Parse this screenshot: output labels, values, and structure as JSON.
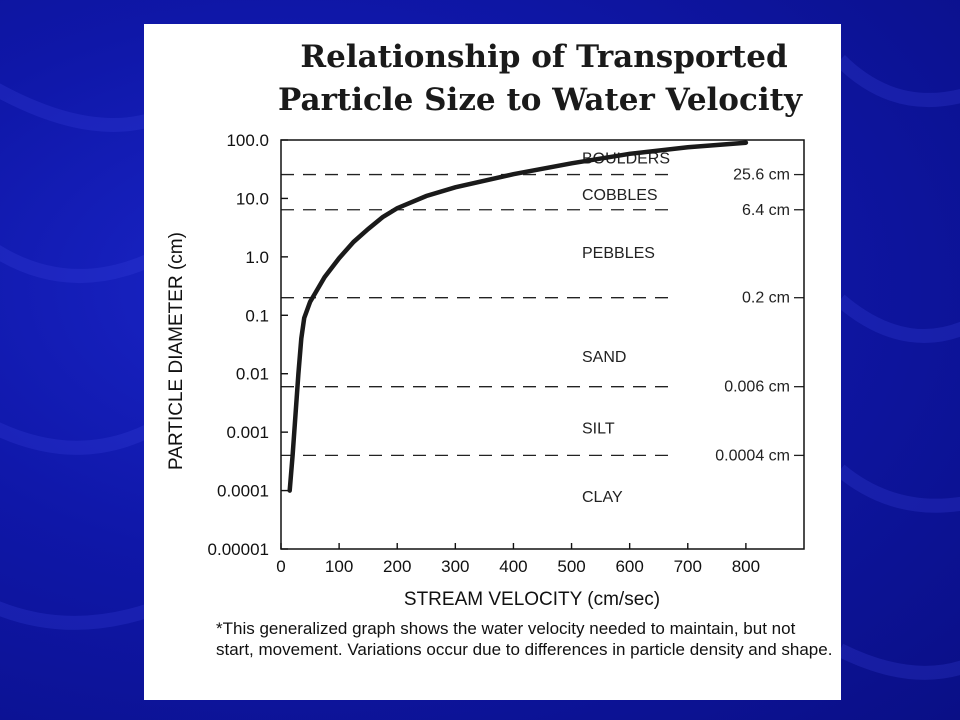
{
  "slide": {
    "background": "#0f17a8",
    "panel_color": "#ffffff"
  },
  "chart_data": {
    "type": "line",
    "title_lines": [
      "Relationship of Transported",
      "Particle Size to Water Velocity"
    ],
    "xlabel": "STREAM VELOCITY (cm/sec)",
    "ylabel": "PARTICLE DIAMETER (cm)",
    "x_ticks": [
      0,
      100,
      200,
      300,
      400,
      500,
      600,
      700,
      800
    ],
    "y_ticks": [
      "100.0",
      "10.0",
      "1.0",
      "0.1",
      "0.01",
      "0.001",
      "0.0001",
      "0.00001"
    ],
    "y_tick_values": [
      100,
      10,
      1,
      0.1,
      0.01,
      0.001,
      0.0001,
      1e-05
    ],
    "xlim": [
      0,
      900
    ],
    "ylim": [
      1e-05,
      100
    ],
    "yscale": "log",
    "grid": false,
    "series": [
      {
        "x": [
          15,
          20,
          25,
          30,
          35,
          40,
          50,
          60,
          75,
          100,
          125,
          150,
          175,
          200,
          250,
          300,
          400,
          500,
          600,
          700,
          800
        ],
        "y": [
          0.0001,
          0.0004,
          0.002,
          0.01,
          0.04,
          0.09,
          0.17,
          0.25,
          0.45,
          0.95,
          1.8,
          3.0,
          4.8,
          6.8,
          11,
          15.5,
          26,
          40,
          58,
          75,
          90
        ]
      }
    ],
    "boundaries": [
      {
        "value": 25.6,
        "label": "25.6 cm"
      },
      {
        "value": 6.4,
        "label": "6.4 cm"
      },
      {
        "value": 0.2,
        "label": "0.2 cm"
      },
      {
        "value": 0.006,
        "label": "0.006 cm"
      },
      {
        "value": 0.0004,
        "label": "0.0004 cm"
      }
    ],
    "zones": [
      {
        "name": "BOULDERS",
        "y": 50
      },
      {
        "name": "COBBLES",
        "y": 12
      },
      {
        "name": "PEBBLES",
        "y": 1.2
      },
      {
        "name": "SAND",
        "y": 0.02
      },
      {
        "name": "SILT",
        "y": 0.0012
      },
      {
        "name": "CLAY",
        "y": 8e-05
      }
    ],
    "line_color": "#1a1a1a"
  },
  "footnote": "*This generalized graph shows the water velocity needed to maintain, but not start, movement. Variations occur due to differences in particle density and shape."
}
